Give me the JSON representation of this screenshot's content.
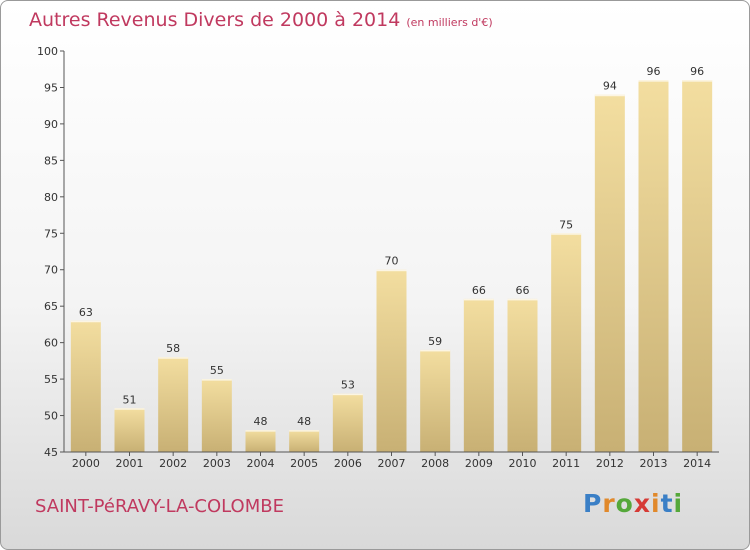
{
  "title": "Autres Revenus Divers de 2000 à 2014",
  "subtitle": "(en milliers d'€)",
  "commune": "SAINT-PéRAVY-LA-COLOMBE",
  "logo": {
    "letters": [
      "P",
      "r",
      "o",
      "x",
      "i",
      "t",
      "i"
    ],
    "colors": [
      "#3a7fc6",
      "#e1892b",
      "#55a83a",
      "#d63a35",
      "#e1892b",
      "#3a7fc6",
      "#55a83a"
    ]
  },
  "colors": {
    "bar_light": "#f3dea0",
    "bar_dark": "#c8b074",
    "accent": "#c0395f"
  },
  "chart_data": {
    "type": "bar",
    "title": "Autres Revenus Divers de 2000 à 2014",
    "subtitle": "(en milliers d'€)",
    "categories": [
      "2000",
      "2001",
      "2002",
      "2003",
      "2004",
      "2005",
      "2006",
      "2007",
      "2008",
      "2009",
      "2010",
      "2011",
      "2012",
      "2013",
      "2014"
    ],
    "values": [
      63,
      51,
      58,
      55,
      48,
      48,
      53,
      70,
      59,
      66,
      66,
      75,
      94,
      96,
      96
    ],
    "ylim": [
      45,
      100
    ],
    "yticks": [
      45,
      50,
      55,
      60,
      65,
      70,
      75,
      80,
      85,
      90,
      95,
      100
    ],
    "grid": false,
    "data_labels": true
  }
}
